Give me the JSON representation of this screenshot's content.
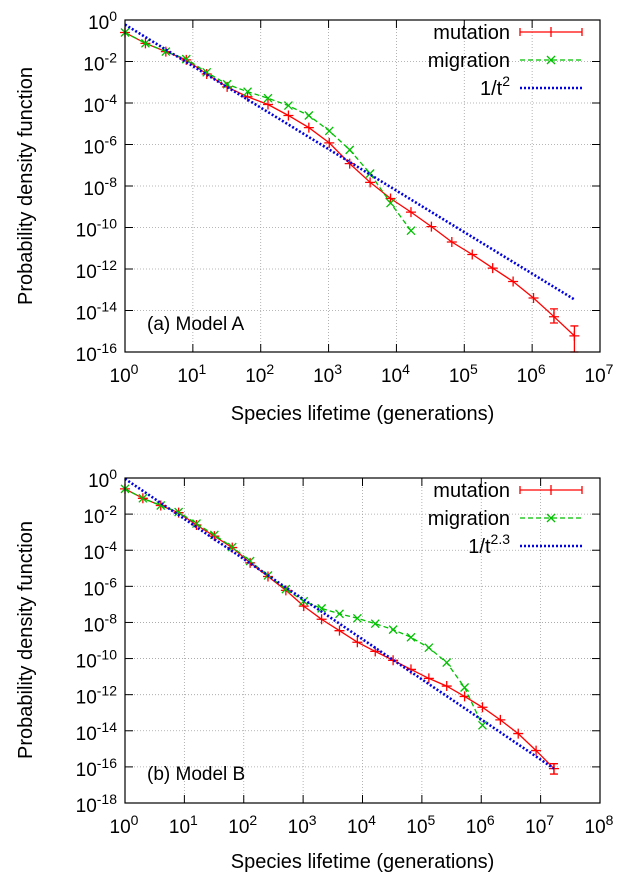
{
  "chart_data": [
    {
      "type": "line",
      "scale": {
        "x": "log",
        "y": "log"
      },
      "xlim": [
        1,
        10000000
      ],
      "ylim": [
        1e-16,
        1
      ],
      "x_tick_exponents": [
        0,
        1,
        2,
        3,
        4,
        5,
        6,
        7
      ],
      "y_tick_exponents": [
        0,
        -2,
        -4,
        -6,
        -8,
        -10,
        -12,
        -14,
        -16
      ],
      "tick_base": "10",
      "xlabel": "Species lifetime (generations)",
      "ylabel": "Probability density function",
      "annotation": "(a) Model A",
      "grid": true,
      "legend_position": "top-right",
      "series": [
        {
          "name": "mutation",
          "color": "#ff0000",
          "style": "solid",
          "marker": "plus",
          "error_bars": true,
          "x": [
            1,
            2,
            4,
            8,
            16,
            32,
            64,
            128,
            256,
            512,
            1024,
            2048,
            4096,
            8192,
            16384,
            32768,
            65536,
            131072,
            262144,
            524288,
            1048576,
            2097152,
            4194304
          ],
          "y": [
            0.25,
            0.075,
            0.03,
            0.012,
            0.0025,
            0.0006,
            0.0002,
            8.5e-05,
            2.5e-05,
            6.5e-06,
            1.2e-06,
            1.2e-07,
            1.5e-08,
            2.5e-09,
            5.5e-10,
            1.1e-10,
            2e-11,
            5e-12,
            1.1e-12,
            2.5e-13,
            4e-14,
            5e-15,
            6e-16
          ],
          "y_error_low": [
            null,
            null,
            null,
            null,
            null,
            null,
            null,
            null,
            null,
            null,
            null,
            null,
            null,
            null,
            null,
            null,
            null,
            null,
            null,
            null,
            null,
            2.5e-15,
            1e-16
          ],
          "y_error_high": [
            null,
            null,
            null,
            null,
            null,
            null,
            null,
            null,
            null,
            null,
            null,
            null,
            null,
            null,
            null,
            null,
            null,
            null,
            null,
            null,
            null,
            1.2e-14,
            1.8e-15
          ]
        },
        {
          "name": "migration",
          "color": "#00c000",
          "style": "dashed",
          "marker": "cross",
          "x": [
            1,
            2,
            4,
            8,
            16,
            32,
            64,
            128,
            256,
            512,
            1024,
            2048,
            4096,
            8192,
            16384
          ],
          "y": [
            0.25,
            0.075,
            0.03,
            0.013,
            0.003,
            0.0008,
            0.00035,
            0.00017,
            7.5e-05,
            2.5e-05,
            4.5e-06,
            5.5e-07,
            4e-08,
            1.5e-09,
            7e-11
          ]
        },
        {
          "name": "1/t",
          "name_exponent": "2",
          "color": "#0000e0",
          "style": "dotted",
          "marker": "none",
          "x": [
            1,
            4194304
          ],
          "y": [
            0.6,
            3.4e-14
          ]
        }
      ]
    },
    {
      "type": "line",
      "scale": {
        "x": "log",
        "y": "log"
      },
      "xlim": [
        1,
        100000000
      ],
      "ylim": [
        1e-18,
        1
      ],
      "x_tick_exponents": [
        0,
        1,
        2,
        3,
        4,
        5,
        6,
        7,
        8
      ],
      "y_tick_exponents": [
        0,
        -2,
        -4,
        -6,
        -8,
        -10,
        -12,
        -14,
        -16,
        -18
      ],
      "tick_base": "10",
      "xlabel": "Species lifetime (generations)",
      "ylabel": "Probability density function",
      "annotation": "(b) Model B",
      "grid": true,
      "legend_position": "top-right",
      "series": [
        {
          "name": "mutation",
          "color": "#ff0000",
          "style": "solid",
          "marker": "plus",
          "error_bars": true,
          "x": [
            1,
            2,
            4,
            8,
            16,
            32,
            64,
            128,
            256,
            512,
            1024,
            2048,
            4096,
            8192,
            16384,
            32768,
            65536,
            131072,
            262144,
            524288,
            1048576,
            2097152,
            4194304,
            8388608,
            16777216
          ],
          "y": [
            0.25,
            0.075,
            0.03,
            0.012,
            0.0025,
            0.0006,
            0.00014,
            2e-05,
            3.5e-06,
            6e-07,
            8e-08,
            1.5e-08,
            3.5e-09,
            8e-10,
            2.5e-10,
            8e-11,
            2.5e-11,
            8e-12,
            3e-12,
            8e-13,
            2e-13,
            4e-14,
            7e-15,
            8e-16,
            8e-17
          ],
          "y_error_low": [
            null,
            null,
            null,
            null,
            null,
            null,
            null,
            null,
            null,
            null,
            null,
            null,
            null,
            null,
            null,
            null,
            null,
            null,
            null,
            null,
            null,
            null,
            null,
            null,
            4e-17
          ],
          "y_error_high": [
            null,
            null,
            null,
            null,
            null,
            null,
            null,
            null,
            null,
            null,
            null,
            null,
            null,
            null,
            null,
            null,
            null,
            null,
            null,
            null,
            null,
            null,
            null,
            null,
            1.5e-16
          ]
        },
        {
          "name": "migration",
          "color": "#00c000",
          "style": "dashed",
          "marker": "cross",
          "x": [
            1,
            2,
            4,
            8,
            16,
            32,
            64,
            128,
            256,
            512,
            1024,
            2048,
            4096,
            8192,
            16384,
            32768,
            65536,
            131072,
            262144,
            524288,
            1048576
          ],
          "y": [
            0.25,
            0.075,
            0.03,
            0.013,
            0.003,
            0.0007,
            0.00015,
            2.5e-05,
            4e-06,
            7e-07,
            1.5e-07,
            6e-08,
            3e-08,
            1.7e-08,
            8.5e-09,
            4e-09,
            1.5e-09,
            4e-10,
            6e-11,
            2.5e-12,
            2e-14
          ]
        },
        {
          "name": "1/t",
          "name_exponent": "2.3",
          "color": "#0000e0",
          "style": "dotted",
          "marker": "none",
          "x": [
            1,
            16777216
          ],
          "y": [
            0.9,
            8e-17
          ]
        }
      ]
    }
  ]
}
